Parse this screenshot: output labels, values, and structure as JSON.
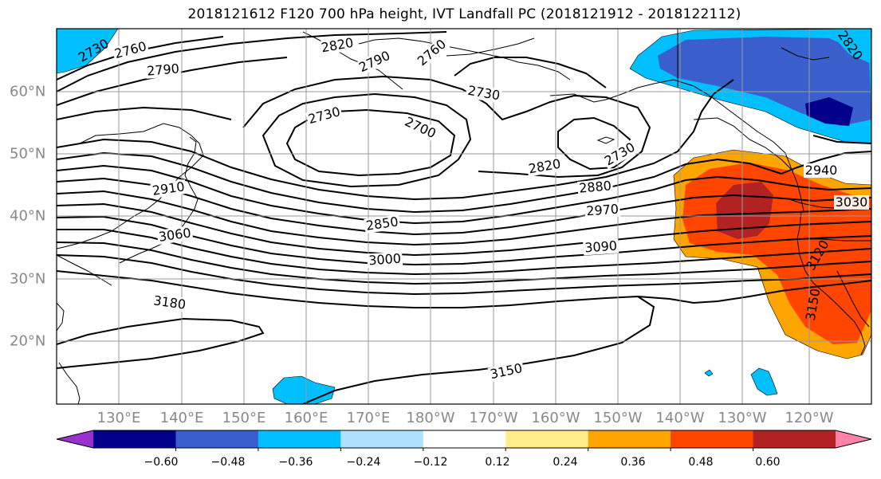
{
  "title": "2018121612 F120 700 hPa height, IVT Landfall PC (2018121912 - 2018122112)",
  "lon_labels": [
    "130°E",
    "140°E",
    "150°E",
    "160°E",
    "170°E",
    "180°W",
    "170°W",
    "160°W",
    "150°W",
    "140°W",
    "130°W",
    "120°W"
  ],
  "lat_labels": [
    "60°N",
    "50°N",
    "40°N",
    "30°N",
    "20°N"
  ],
  "contour_labels": [
    "2730",
    "2760",
    "2790",
    "2820",
    "2790",
    "2760",
    "2730",
    "2730",
    "2700",
    "2730",
    "2820",
    "2880",
    "2970",
    "3090",
    "2910",
    "2850",
    "3060",
    "3000",
    "3180",
    "3150",
    "2940",
    "3030",
    "3120",
    "3150",
    "2820"
  ],
  "colorbar": {
    "ticks": [
      "−0.60",
      "−0.48",
      "−0.36",
      "−0.24",
      "−0.12",
      "0.12",
      "0.24",
      "0.36",
      "0.48",
      "0.60"
    ],
    "colors": [
      "#9932cc",
      "#00008b",
      "#3a5fcd",
      "#00bfff",
      "#b0e2ff",
      "#ffffff",
      "#ffec8b",
      "#ffa500",
      "#ff4500",
      "#b22222",
      "#ff82ab"
    ]
  },
  "fill_colors": {
    "light_blue": "#00bfff",
    "mid_blue": "#3a5fcd",
    "dark_blue": "#00008b",
    "light_orange": "#ffa500",
    "red_orange": "#ff4500",
    "dark_red": "#b22222",
    "yellow": "#ffec8b"
  }
}
